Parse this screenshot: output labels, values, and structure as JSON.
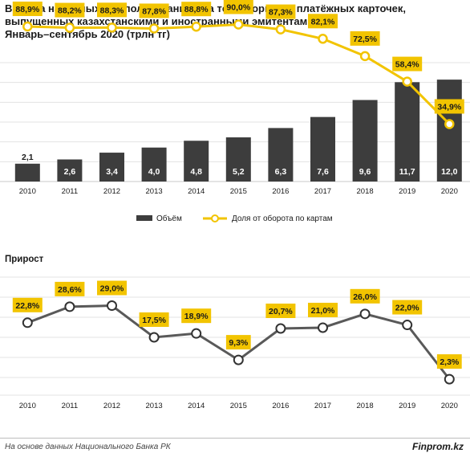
{
  "title": {
    "line1": "Выдача наличных с использованием на территории РК платёжных карточек,",
    "line2": "выпущенных казахстанскими и иностранными эмитентами.",
    "line3": "Январь–сентябрь 2020  (трлн тг)"
  },
  "colors": {
    "bar": "#3d3d3d",
    "line": "#f2c400",
    "growth_line": "#595959",
    "label_bg": "#f2c400"
  },
  "chart_data": [
    {
      "type": "bar",
      "categories": [
        "2010",
        "2011",
        "2012",
        "2013",
        "2014",
        "2015",
        "2016",
        "2017",
        "2018",
        "2019",
        "2020"
      ],
      "series": [
        {
          "name": "Объём",
          "type": "bar",
          "values": [
            2.1,
            2.6,
            3.4,
            4.0,
            4.8,
            5.2,
            6.3,
            7.6,
            9.6,
            11.7,
            12.0
          ],
          "labels": [
            "2,1",
            "2,6",
            "3,4",
            "4,0",
            "4,8",
            "5,2",
            "6,3",
            "7,6",
            "9,6",
            "11,7",
            "12,0"
          ]
        },
        {
          "name": "Доля от оборота по картам",
          "type": "line",
          "values": [
            88.9,
            88.2,
            88.3,
            87.8,
            88.8,
            90.0,
            87.3,
            82.1,
            72.5,
            58.4,
            34.9
          ],
          "labels": [
            "88,9%",
            "88,2%",
            "88,3%",
            "87,8%",
            "88,8%",
            "90,0%",
            "87,3%",
            "82,1%",
            "72,5%",
            "58,4%",
            "34,9%"
          ]
        }
      ],
      "legend_position": "bottom",
      "grid": true
    },
    {
      "type": "line",
      "title": "Прирост",
      "categories": [
        "2010",
        "2011",
        "2012",
        "2013",
        "2014",
        "2015",
        "2016",
        "2017",
        "2018",
        "2019",
        "2020"
      ],
      "values": [
        22.8,
        28.6,
        29.0,
        17.5,
        18.9,
        9.3,
        20.7,
        21.0,
        26.0,
        22.0,
        2.3
      ],
      "labels": [
        "22,8%",
        "28,6%",
        "29,0%",
        "17,5%",
        "18,9%",
        "9,3%",
        "20,7%",
        "21,0%",
        "26,0%",
        "22,0%",
        "2,3%"
      ],
      "grid": true
    }
  ],
  "footer": {
    "source": "На основе данных  Национального  Банка РК",
    "brand": "Finprom.kz"
  }
}
